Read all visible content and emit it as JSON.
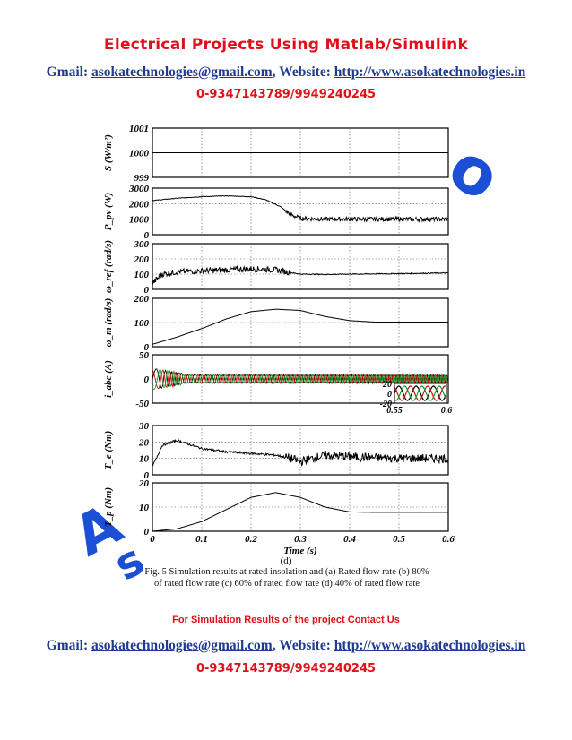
{
  "header": {
    "title": "Electrical Projects Using Matlab/Simulink",
    "gmail_label": "Gmail: ",
    "email": "asokatechnologies@gmail.com",
    "website_label": ", Website: ",
    "website": "http://www.asokatechnologies.in",
    "phone": "0-9347143789/9949240245"
  },
  "watermark": {
    "text_left": "A",
    "text_left2": "s",
    "text_right": "o"
  },
  "figure": {
    "sub_label": "(d)",
    "caption_line1": "Fig. 5 Simulation results at rated insolation and (a) Rated flow rate (b) 80%",
    "caption_line2": "of rated flow rate (c) 60% of rated flow rate (d) 40% of rated flow rate"
  },
  "footer": {
    "contact_us": "For Simulation Results of the project Contact Us",
    "gmail_label": "Gmail: ",
    "email": "asokatechnologies@gmail.com",
    "website_label": ", Website: ",
    "website": "http://www.asokatechnologies.in",
    "phone": "0-9347143789/9949240245"
  },
  "chart_data": {
    "type": "line",
    "xlabel": "Time (s)",
    "x_ticks": [
      "0",
      "0.1",
      "0.2",
      "0.3",
      "0.4",
      "0.5",
      "0.6"
    ],
    "xlim": [
      0,
      0.6
    ],
    "grid": true,
    "panels": [
      {
        "ylabel": "S (W/m²)",
        "yticks": [
          "999",
          "1000",
          "1001"
        ],
        "ylim": [
          999,
          1001
        ],
        "series": [
          {
            "x": [
              0,
              0.6
            ],
            "y": [
              1000,
              1000
            ]
          }
        ]
      },
      {
        "ylabel": "P_pv (W)",
        "yticks": [
          "0",
          "1000",
          "2000",
          "3000"
        ],
        "ylim": [
          0,
          3000
        ],
        "series": [
          {
            "x": [
              0,
              0.05,
              0.1,
              0.15,
              0.2,
              0.23,
              0.26,
              0.28,
              0.3,
              0.35,
              0.4,
              0.5,
              0.6
            ],
            "y": [
              2200,
              2350,
              2450,
              2500,
              2450,
              2250,
              1800,
              1300,
              1050,
              1000,
              1000,
              1000,
              1000
            ]
          }
        ]
      },
      {
        "ylabel": "ω_ref (rad/s)",
        "yticks": [
          "0",
          "100",
          "200",
          "300"
        ],
        "ylim": [
          0,
          300
        ],
        "series": [
          {
            "x": [
              0,
              0.02,
              0.05,
              0.1,
              0.15,
              0.2,
              0.25,
              0.28,
              0.3,
              0.35,
              0.4,
              0.5,
              0.6
            ],
            "y": [
              40,
              100,
              115,
              122,
              128,
              135,
              128,
              110,
              100,
              98,
              100,
              103,
              108
            ]
          }
        ]
      },
      {
        "ylabel": "ω_m (rad/s)",
        "yticks": [
          "0",
          "100",
          "200"
        ],
        "ylim": [
          0,
          200
        ],
        "series": [
          {
            "x": [
              0,
              0.05,
              0.1,
              0.15,
              0.2,
              0.25,
              0.3,
              0.35,
              0.4,
              0.45,
              0.5,
              0.6
            ],
            "y": [
              10,
              40,
              75,
              115,
              145,
              155,
              150,
              125,
              108,
              102,
              102,
              102
            ]
          }
        ]
      },
      {
        "ylabel": "i_abc (A)",
        "yticks": [
          "-50",
          "0",
          "50"
        ],
        "ylim": [
          -50,
          50
        ],
        "series": [
          {
            "name": "a",
            "amplitude": 12
          },
          {
            "name": "b",
            "amplitude": 12
          },
          {
            "name": "c",
            "amplitude": 12
          }
        ],
        "inset": {
          "yticks": [
            "-20",
            "0",
            "20"
          ],
          "xticks": [
            "0.55",
            "0.6"
          ],
          "xlim": [
            0.55,
            0.6
          ],
          "ylim": [
            -20,
            20
          ]
        }
      },
      {
        "ylabel": "T_e (Nm)",
        "yticks": [
          "0",
          "10",
          "20",
          "30"
        ],
        "ylim": [
          0,
          30
        ],
        "series": [
          {
            "x": [
              0,
              0.02,
              0.05,
              0.1,
              0.15,
              0.2,
              0.25,
              0.28,
              0.3,
              0.35,
              0.4,
              0.5,
              0.6
            ],
            "y": [
              5,
              18,
              21,
              16,
              14,
              13,
              12,
              10,
              8,
              12,
              11,
              10,
              10
            ]
          }
        ]
      },
      {
        "ylabel": "T_p (Nm)",
        "yticks": [
          "0",
          "10",
          "20"
        ],
        "ylim": [
          0,
          20
        ],
        "series": [
          {
            "x": [
              0,
              0.05,
              0.1,
              0.15,
              0.2,
              0.25,
              0.3,
              0.35,
              0.4,
              0.45,
              0.5,
              0.6
            ],
            "y": [
              0,
              1,
              4,
              9,
              14,
              16,
              14,
              10,
              8,
              7.8,
              7.8,
              7.8
            ]
          }
        ]
      }
    ]
  }
}
